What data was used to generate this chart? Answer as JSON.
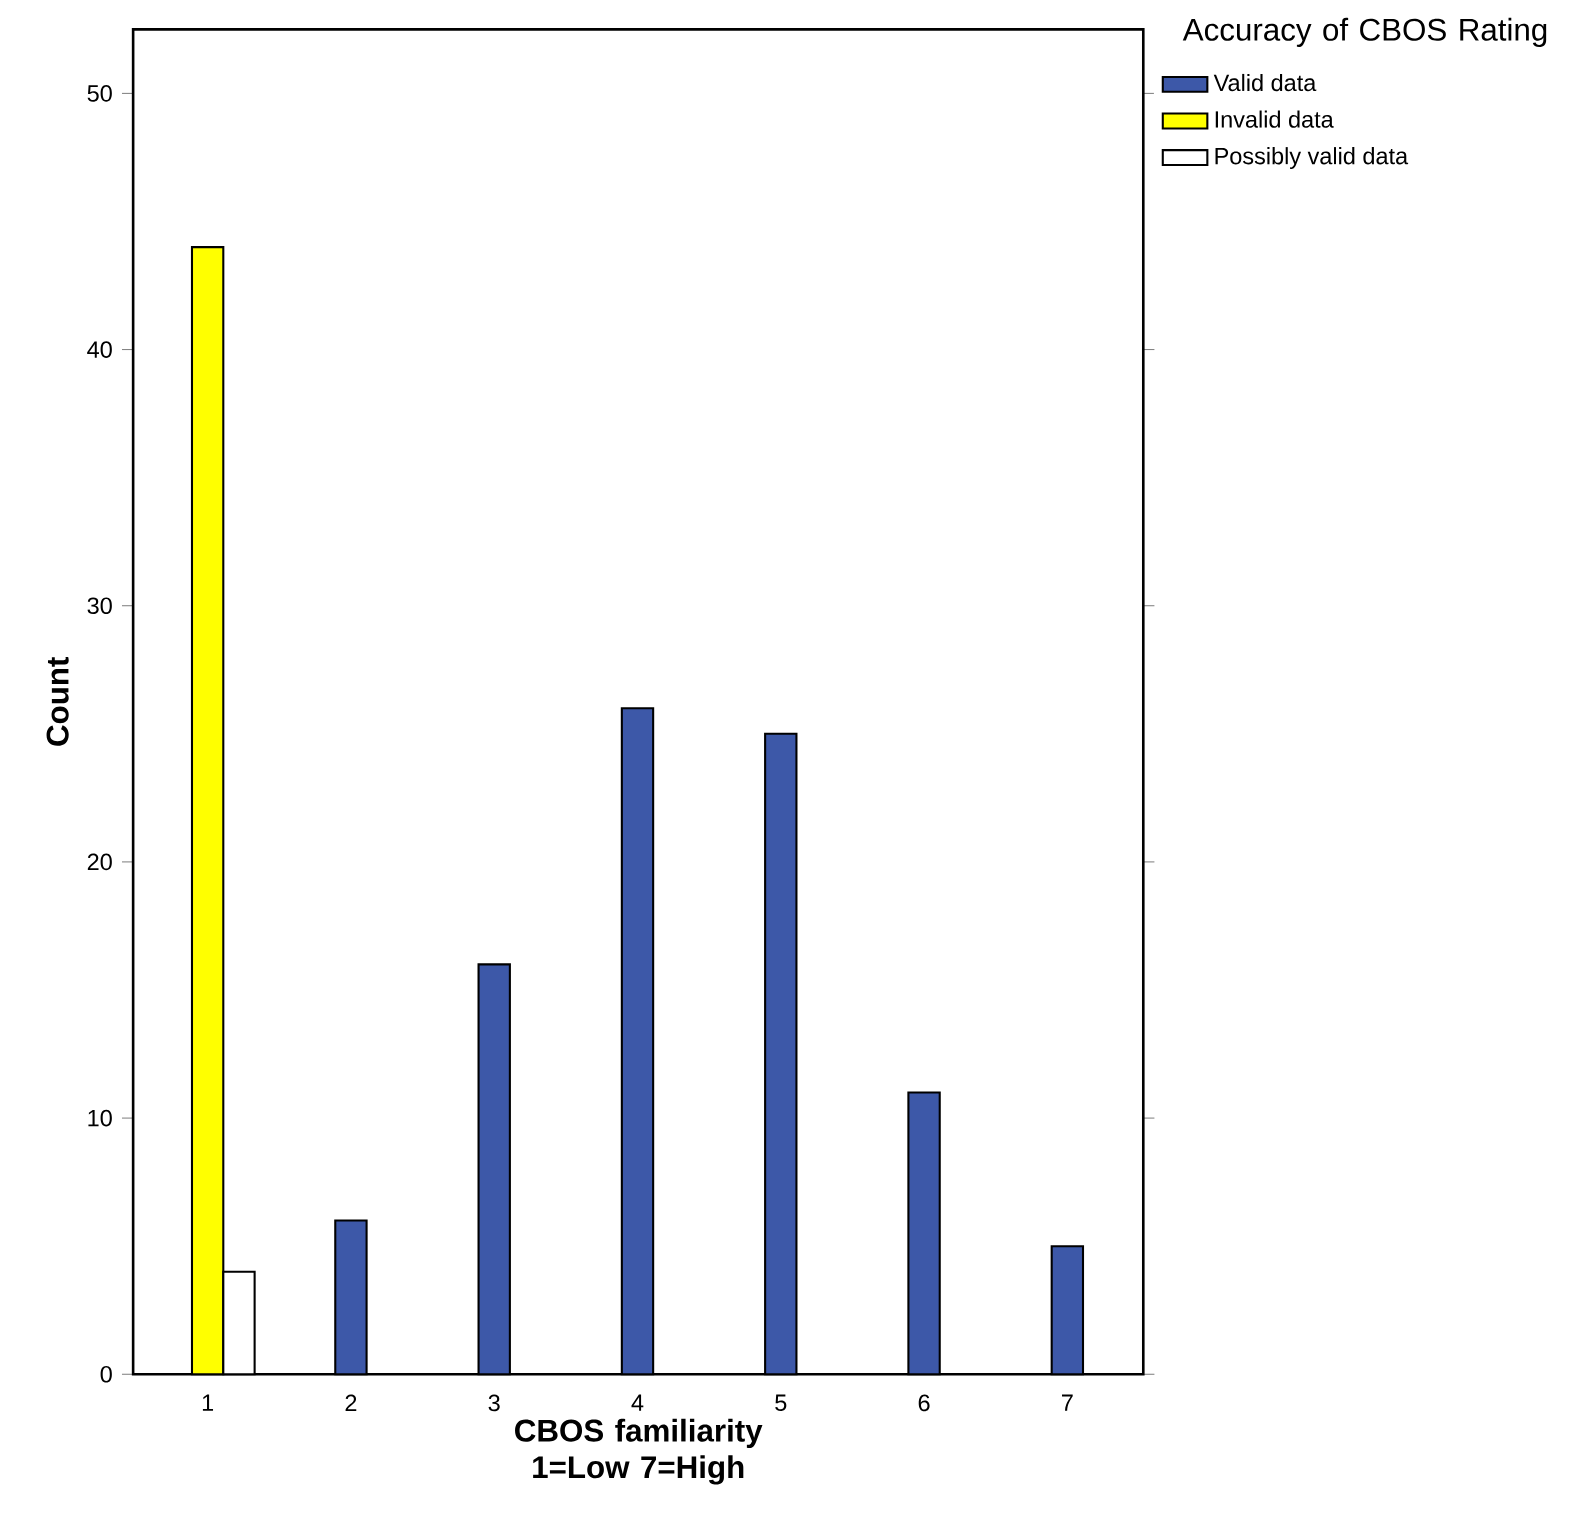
{
  "chart_data": {
    "type": "bar",
    "xlabel": "CBOS familiarity 1=Low 7=High",
    "ylabel": "Count",
    "legend_title": "Accuracy of CBOS Rating",
    "categories": [
      "1",
      "2",
      "3",
      "4",
      "5",
      "6",
      "7"
    ],
    "series": [
      {
        "name": "Valid data",
        "color": "#3d58a8",
        "values": [
          null,
          6,
          16,
          26,
          25,
          11,
          5
        ]
      },
      {
        "name": "Invalid data",
        "color": "#ffff00",
        "values": [
          44,
          null,
          null,
          null,
          null,
          null,
          null
        ]
      },
      {
        "name": "Possibly valid data",
        "color": "#ffffff",
        "values": [
          4,
          null,
          null,
          null,
          null,
          null,
          null
        ]
      }
    ],
    "ylim": [
      0,
      52.5
    ],
    "yticks": [
      0,
      10,
      20,
      30,
      40,
      50
    ],
    "grid": false,
    "legend": "top right"
  }
}
